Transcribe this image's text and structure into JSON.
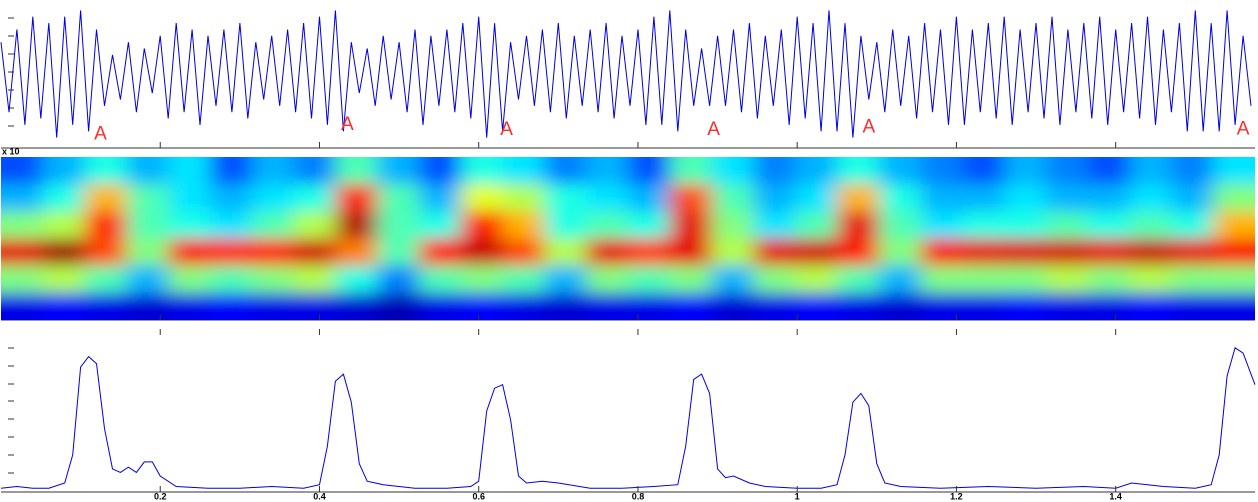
{
  "chart_data": [
    {
      "type": "line",
      "color": "#0000e0",
      "xlim": [
        0,
        1.575
      ],
      "ylim": [
        -1.1,
        1.1
      ],
      "x": [
        0,
        0.01,
        0.02,
        0.03,
        0.04,
        0.05,
        0.06,
        0.07,
        0.08,
        0.09,
        0.1,
        0.11,
        0.12,
        0.13,
        0.14,
        0.15,
        0.16,
        0.17,
        0.18,
        0.19,
        0.2,
        0.21,
        0.22,
        0.23,
        0.24,
        0.25,
        0.26,
        0.27,
        0.28,
        0.29,
        0.3,
        0.31,
        0.32,
        0.33,
        0.34,
        0.35,
        0.36,
        0.37,
        0.38,
        0.39,
        0.4,
        0.41,
        0.42,
        0.43,
        0.44,
        0.45,
        0.46,
        0.47,
        0.48,
        0.49,
        0.5,
        0.51,
        0.52,
        0.53,
        0.54,
        0.55,
        0.56,
        0.57,
        0.58,
        0.59,
        0.6,
        0.61,
        0.62,
        0.63,
        0.64,
        0.65,
        0.66,
        0.67,
        0.68,
        0.69,
        0.7,
        0.71,
        0.72,
        0.73,
        0.74,
        0.75,
        0.76,
        0.77,
        0.78,
        0.79,
        0.8,
        0.81,
        0.82,
        0.83,
        0.84,
        0.85,
        0.86,
        0.87,
        0.88,
        0.89,
        0.9,
        0.91,
        0.92,
        0.93,
        0.94,
        0.95,
        0.96,
        0.97,
        0.98,
        0.99,
        1,
        1.01,
        1.02,
        1.03,
        1.04,
        1.05,
        1.06,
        1.07,
        1.08,
        1.09,
        1.1,
        1.11,
        1.12,
        1.13,
        1.14,
        1.15,
        1.16,
        1.17,
        1.18,
        1.19,
        1.2,
        1.21,
        1.22,
        1.23,
        1.24,
        1.25,
        1.26,
        1.27,
        1.28,
        1.29,
        1.3,
        1.31,
        1.32,
        1.33,
        1.34,
        1.35,
        1.36,
        1.37,
        1.38,
        1.39,
        1.4,
        1.41,
        1.42,
        1.43,
        1.44,
        1.45,
        1.46,
        1.47,
        1.48,
        1.49,
        1.5,
        1.51,
        1.52,
        1.53,
        1.54,
        1.55,
        1.56,
        1.57
      ],
      "values": [
        0.5,
        -0.6,
        0.7,
        -0.8,
        0.9,
        -0.7,
        0.8,
        -1.0,
        0.9,
        -0.8,
        1.0,
        -0.9,
        0.7,
        -0.5,
        0.3,
        -0.4,
        0.5,
        -0.6,
        0.4,
        -0.3,
        0.6,
        -0.7,
        0.8,
        -0.6,
        0.7,
        -0.8,
        0.6,
        -0.5,
        0.7,
        -0.6,
        0.8,
        -0.7,
        0.5,
        -0.4,
        0.6,
        -0.5,
        0.7,
        -0.6,
        0.8,
        -0.7,
        0.9,
        -0.8,
        1.0,
        -0.9,
        0.5,
        -0.3,
        0.4,
        -0.5,
        0.6,
        -0.4,
        0.5,
        -0.6,
        0.7,
        -0.8,
        0.6,
        -0.5,
        0.7,
        -0.6,
        0.8,
        -0.7,
        0.9,
        -1.0,
        0.8,
        -0.9,
        0.5,
        -0.4,
        0.6,
        -0.5,
        0.7,
        -0.6,
        0.8,
        -0.7,
        0.6,
        -0.5,
        0.7,
        -0.6,
        0.8,
        -0.7,
        0.6,
        -0.5,
        0.7,
        -0.8,
        0.9,
        -0.8,
        1.0,
        -0.9,
        0.7,
        -0.5,
        0.4,
        -0.5,
        0.6,
        -0.5,
        0.7,
        -0.6,
        0.8,
        -0.7,
        0.6,
        -0.5,
        0.7,
        -0.8,
        0.9,
        -0.7,
        0.8,
        -0.9,
        1.0,
        -0.9,
        0.8,
        -1.0,
        0.6,
        -0.4,
        0.5,
        -0.6,
        0.7,
        -0.5,
        0.6,
        -0.7,
        0.8,
        -0.6,
        0.7,
        -0.8,
        0.9,
        -0.8,
        0.7,
        -0.6,
        0.8,
        -0.7,
        0.9,
        -0.8,
        0.7,
        -0.6,
        0.8,
        -0.7,
        0.9,
        -0.8,
        0.7,
        -0.6,
        0.8,
        -0.7,
        0.9,
        -0.8,
        0.7,
        -0.6,
        0.8,
        -0.7,
        0.9,
        -0.8,
        0.7,
        -0.6,
        0.8,
        -0.9,
        1.0,
        -0.9,
        0.8,
        -0.9,
        1.0,
        -0.8,
        0.6,
        -0.5
      ],
      "annotations": [
        {
          "text": "A",
          "x": 0.125,
          "y": -0.95
        },
        {
          "text": "A",
          "x": 0.435,
          "y": -0.8
        },
        {
          "text": "A",
          "x": 0.635,
          "y": -0.88
        },
        {
          "text": "A",
          "x": 0.895,
          "y": -0.88
        },
        {
          "text": "A",
          "x": 1.09,
          "y": -0.84
        },
        {
          "text": "A",
          "x": 1.56,
          "y": -0.87
        }
      ]
    },
    {
      "type": "heatmap",
      "label": "x 10",
      "xlim": [
        0,
        1.575
      ],
      "z": [
        [
          0.2,
          0.3,
          0.4,
          0.3,
          0.35,
          0.2,
          0.3,
          0.25,
          0.45,
          0.3,
          0.2,
          0.4,
          0.35,
          0.25,
          0.3,
          0.2,
          0.45,
          0.35,
          0.25,
          0.3,
          0.4,
          0.3,
          0.25,
          0.2,
          0.3,
          0.25,
          0.2,
          0.3,
          0.25,
          0.35
        ],
        [
          0.3,
          0.4,
          0.7,
          0.45,
          0.35,
          0.3,
          0.35,
          0.4,
          0.85,
          0.45,
          0.3,
          0.6,
          0.55,
          0.4,
          0.35,
          0.3,
          0.8,
          0.45,
          0.3,
          0.35,
          0.7,
          0.4,
          0.3,
          0.3,
          0.35,
          0.3,
          0.3,
          0.35,
          0.3,
          0.5
        ],
        [
          0.5,
          0.55,
          0.85,
          0.45,
          0.4,
          0.35,
          0.45,
          0.55,
          0.95,
          0.45,
          0.4,
          0.85,
          0.7,
          0.4,
          0.45,
          0.4,
          0.9,
          0.5,
          0.35,
          0.45,
          0.9,
          0.45,
          0.35,
          0.4,
          0.4,
          0.45,
          0.4,
          0.45,
          0.4,
          0.7
        ],
        [
          0.9,
          0.97,
          0.8,
          0.5,
          0.88,
          0.85,
          0.86,
          0.92,
          0.75,
          0.45,
          0.86,
          0.93,
          0.8,
          0.55,
          0.9,
          0.82,
          0.9,
          0.55,
          0.9,
          0.92,
          0.85,
          0.5,
          0.88,
          0.9,
          0.91,
          0.92,
          0.9,
          0.93,
          0.9,
          0.88
        ],
        [
          0.5,
          0.55,
          0.45,
          0.3,
          0.5,
          0.45,
          0.5,
          0.55,
          0.4,
          0.25,
          0.45,
          0.5,
          0.45,
          0.3,
          0.5,
          0.45,
          0.5,
          0.3,
          0.5,
          0.55,
          0.45,
          0.3,
          0.5,
          0.5,
          0.5,
          0.55,
          0.5,
          0.55,
          0.5,
          0.5
        ],
        [
          0.1,
          0.12,
          0.1,
          0.08,
          0.1,
          0.12,
          0.1,
          0.1,
          0.08,
          0.05,
          0.1,
          0.12,
          0.1,
          0.08,
          0.1,
          0.1,
          0.12,
          0.08,
          0.1,
          0.12,
          0.1,
          0.08,
          0.1,
          0.1,
          0.12,
          0.1,
          0.1,
          0.12,
          0.1,
          0.1
        ]
      ]
    },
    {
      "type": "line",
      "color": "#0000e0",
      "xlim": [
        0,
        1.575
      ],
      "ylim": [
        0,
        9
      ],
      "xticks": [
        0.2,
        0.4,
        0.6,
        0.8,
        1,
        1.2,
        1.4
      ],
      "x": [
        0,
        0.02,
        0.04,
        0.06,
        0.08,
        0.09,
        0.1,
        0.11,
        0.12,
        0.13,
        0.14,
        0.15,
        0.16,
        0.17,
        0.18,
        0.19,
        0.2,
        0.22,
        0.26,
        0.3,
        0.34,
        0.38,
        0.4,
        0.41,
        0.42,
        0.43,
        0.44,
        0.45,
        0.46,
        0.48,
        0.52,
        0.56,
        0.59,
        0.6,
        0.61,
        0.62,
        0.63,
        0.64,
        0.65,
        0.66,
        0.68,
        0.7,
        0.74,
        0.78,
        0.82,
        0.85,
        0.86,
        0.87,
        0.88,
        0.89,
        0.9,
        0.91,
        0.92,
        0.94,
        0.96,
        1,
        1.03,
        1.05,
        1.06,
        1.07,
        1.08,
        1.09,
        1.1,
        1.11,
        1.13,
        1.18,
        1.24,
        1.3,
        1.36,
        1.4,
        1.42,
        1.46,
        1.5,
        1.52,
        1.53,
        1.54,
        1.55,
        1.56,
        1.575
      ],
      "values": [
        0.1,
        0.2,
        0.1,
        0.1,
        0.4,
        2.0,
        7.0,
        7.6,
        7.2,
        3.5,
        1.2,
        1.0,
        1.3,
        1.0,
        1.6,
        1.6,
        0.8,
        0.2,
        0.1,
        0.1,
        0.2,
        0.1,
        0.3,
        2.5,
        6.2,
        6.6,
        5.0,
        1.5,
        0.5,
        0.3,
        0.1,
        0.1,
        0.2,
        0.5,
        4.5,
        5.8,
        6.0,
        4.0,
        0.8,
        0.4,
        0.5,
        0.4,
        0.1,
        0.1,
        0.2,
        0.3,
        2.5,
        6.3,
        6.6,
        5.5,
        1.2,
        0.7,
        0.8,
        0.4,
        0.2,
        0.1,
        0.1,
        0.3,
        2.0,
        5.0,
        5.5,
        4.8,
        1.5,
        0.4,
        0.2,
        0.1,
        0.2,
        0.1,
        0.2,
        0.1,
        0.4,
        0.2,
        0.1,
        0.3,
        2.0,
        6.5,
        8.1,
        7.8,
        6.0
      ]
    }
  ]
}
